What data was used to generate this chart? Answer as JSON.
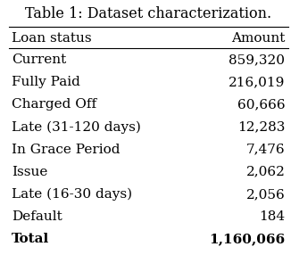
{
  "title": "Table 1: Dataset characterization.",
  "col_headers": [
    "Loan status",
    "Amount"
  ],
  "rows": [
    [
      "Current",
      "859,320"
    ],
    [
      "Fully Paid",
      "216,019"
    ],
    [
      "Charged Off",
      "60,666"
    ],
    [
      "Late (31-120 days)",
      "12,283"
    ],
    [
      "In Grace Period",
      "7,476"
    ],
    [
      "Issue",
      "2,062"
    ],
    [
      "Late (16-30 days)",
      "2,056"
    ],
    [
      "Default",
      "184"
    ],
    [
      "Total",
      "1,160,066"
    ]
  ],
  "bold_last_row": true,
  "background_color": "#ffffff",
  "font_size": 11.0,
  "title_font_size": 11.5,
  "header_font_size": 11.0
}
